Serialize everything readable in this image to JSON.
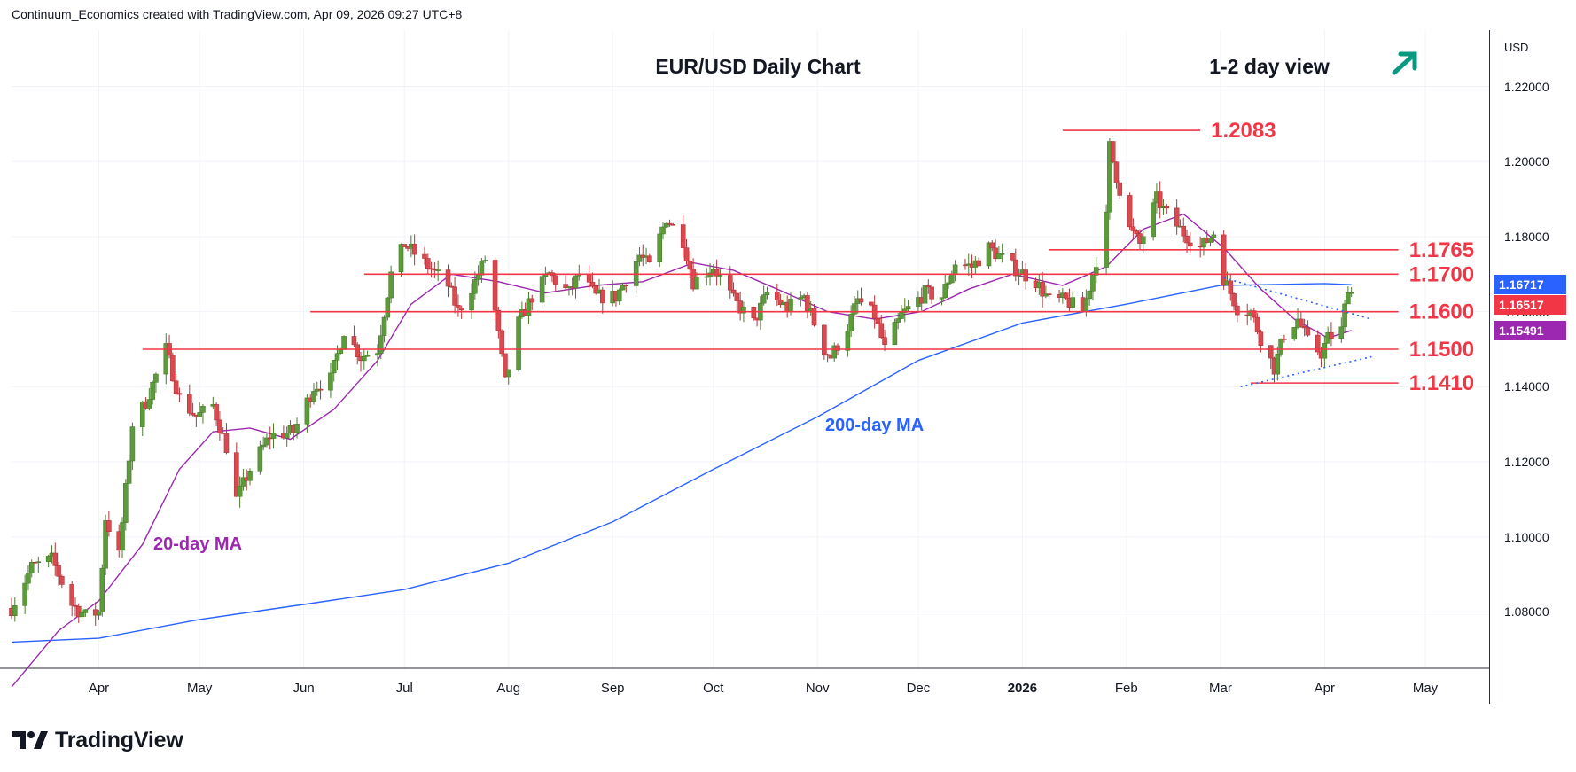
{
  "header": {
    "credit": "Continuum_Economics created with TradingView.com, Apr 09, 2026 09:27 UTC+8"
  },
  "axis": {
    "currency": "USD"
  },
  "branding": {
    "logo_text": "TradingView"
  },
  "colors": {
    "up": "#4a7c2c",
    "down": "#b0343a",
    "resistance": "#f23645",
    "ma20": "#9c27b0",
    "ma200": "#2962ff",
    "trend": "#2962ff",
    "arrow": "#089981",
    "last_price": "#f23645",
    "ma200_tag": "#2962ff",
    "ma20_tag": "#9c27b0"
  },
  "price_tags": [
    {
      "label": "1.16717",
      "value": 1.16717,
      "color": "#2962ff"
    },
    {
      "label": "1.16517",
      "value": 1.16517,
      "color": "#f23645"
    },
    {
      "label": "1.15491",
      "value": 1.15491,
      "color": "#9c27b0"
    }
  ],
  "chart_data": {
    "type": "candlestick",
    "title": "EUR/USD Daily Chart",
    "subtitle": "1-2 day view",
    "view_icon": "arrow-up-right-icon",
    "ylim": [
      1.065,
      1.235
    ],
    "y_ticks": [
      "1.08000",
      "1.10000",
      "1.12000",
      "1.14000",
      "1.16000",
      "1.18000",
      "1.20000",
      "1.22000"
    ],
    "x_ticks": [
      {
        "label": "Apr",
        "date": "2025-04-01"
      },
      {
        "label": "May",
        "date": "2025-05-01"
      },
      {
        "label": "Jun",
        "date": "2025-06-01"
      },
      {
        "label": "Jul",
        "date": "2025-07-01"
      },
      {
        "label": "Aug",
        "date": "2025-08-01"
      },
      {
        "label": "Sep",
        "date": "2025-09-01"
      },
      {
        "label": "Oct",
        "date": "2025-10-01"
      },
      {
        "label": "Nov",
        "date": "2025-11-01"
      },
      {
        "label": "Dec",
        "date": "2025-12-01"
      },
      {
        "label": "2026",
        "date": "2026-01-01",
        "bold": true
      },
      {
        "label": "Feb",
        "date": "2026-02-01"
      },
      {
        "label": "Mar",
        "date": "2026-03-01"
      },
      {
        "label": "Apr",
        "date": "2026-04-01"
      },
      {
        "label": "May",
        "date": "2026-05-01"
      }
    ],
    "xlim": [
      "2025-03-06",
      "2026-05-20"
    ],
    "price_path": [
      [
        "2025-03-06",
        1.081
      ],
      [
        "2025-03-12",
        1.092
      ],
      [
        "2025-03-18",
        1.094
      ],
      [
        "2025-03-24",
        1.082
      ],
      [
        "2025-03-28",
        1.079
      ],
      [
        "2025-04-01",
        1.08
      ],
      [
        "2025-04-03",
        1.105
      ],
      [
        "2025-04-07",
        1.095
      ],
      [
        "2025-04-11",
        1.13
      ],
      [
        "2025-04-15",
        1.136
      ],
      [
        "2025-04-21",
        1.15
      ],
      [
        "2025-04-25",
        1.137
      ],
      [
        "2025-04-30",
        1.132
      ],
      [
        "2025-05-05",
        1.135
      ],
      [
        "2025-05-09",
        1.124
      ],
      [
        "2025-05-12",
        1.11
      ],
      [
        "2025-05-16",
        1.118
      ],
      [
        "2025-05-22",
        1.127
      ],
      [
        "2025-05-29",
        1.128
      ],
      [
        "2025-06-04",
        1.14
      ],
      [
        "2025-06-09",
        1.142
      ],
      [
        "2025-06-13",
        1.155
      ],
      [
        "2025-06-18",
        1.148
      ],
      [
        "2025-06-23",
        1.15
      ],
      [
        "2025-06-27",
        1.17
      ],
      [
        "2025-07-01",
        1.178
      ],
      [
        "2025-07-07",
        1.173
      ],
      [
        "2025-07-14",
        1.167
      ],
      [
        "2025-07-17",
        1.16
      ],
      [
        "2025-07-22",
        1.168
      ],
      [
        "2025-07-25",
        1.174
      ],
      [
        "2025-07-28",
        1.16
      ],
      [
        "2025-07-31",
        1.141
      ],
      [
        "2025-08-04",
        1.157
      ],
      [
        "2025-08-08",
        1.164
      ],
      [
        "2025-08-13",
        1.17
      ],
      [
        "2025-08-19",
        1.165
      ],
      [
        "2025-08-22",
        1.17
      ],
      [
        "2025-08-27",
        1.164
      ],
      [
        "2025-09-02",
        1.164
      ],
      [
        "2025-09-09",
        1.175
      ],
      [
        "2025-09-12",
        1.172
      ],
      [
        "2025-09-17",
        1.185
      ],
      [
        "2025-09-22",
        1.179
      ],
      [
        "2025-09-25",
        1.168
      ],
      [
        "2025-10-01",
        1.172
      ],
      [
        "2025-10-07",
        1.163
      ],
      [
        "2025-10-13",
        1.157
      ],
      [
        "2025-10-17",
        1.165
      ],
      [
        "2025-10-23",
        1.161
      ],
      [
        "2025-10-28",
        1.164
      ],
      [
        "2025-11-03",
        1.15
      ],
      [
        "2025-11-05",
        1.148
      ],
      [
        "2025-11-10",
        1.156
      ],
      [
        "2025-11-13",
        1.163
      ],
      [
        "2025-11-18",
        1.159
      ],
      [
        "2025-11-21",
        1.15
      ],
      [
        "2025-11-26",
        1.159
      ],
      [
        "2025-12-03",
        1.165
      ],
      [
        "2025-12-08",
        1.164
      ],
      [
        "2025-12-12",
        1.173
      ],
      [
        "2025-12-17",
        1.172
      ],
      [
        "2025-12-22",
        1.177
      ],
      [
        "2025-12-29",
        1.172
      ],
      [
        "2026-01-05",
        1.168
      ],
      [
        "2026-01-09",
        1.163
      ],
      [
        "2026-01-14",
        1.163
      ],
      [
        "2026-01-19",
        1.16
      ],
      [
        "2026-01-22",
        1.17
      ],
      [
        "2026-01-26",
        1.185
      ],
      [
        "2026-01-27",
        1.204
      ],
      [
        "2026-01-29",
        1.196
      ],
      [
        "2026-02-02",
        1.182
      ],
      [
        "2026-02-05",
        1.178
      ],
      [
        "2026-02-10",
        1.19
      ],
      [
        "2026-02-13",
        1.186
      ],
      [
        "2026-02-18",
        1.181
      ],
      [
        "2026-02-23",
        1.177
      ],
      [
        "2026-02-27",
        1.181
      ],
      [
        "2026-03-02",
        1.169
      ],
      [
        "2026-03-06",
        1.161
      ],
      [
        "2026-03-10",
        1.16
      ],
      [
        "2026-03-13",
        1.153
      ],
      [
        "2026-03-17",
        1.145
      ],
      [
        "2026-03-20",
        1.154
      ],
      [
        "2026-03-24",
        1.158
      ],
      [
        "2026-03-27",
        1.152
      ],
      [
        "2026-03-31",
        1.149
      ],
      [
        "2026-04-02",
        1.153
      ],
      [
        "2026-04-06",
        1.155
      ],
      [
        "2026-04-08",
        1.167
      ],
      [
        "2026-04-09",
        1.165
      ]
    ],
    "ma20_path": [
      [
        "2025-03-06",
        1.06
      ],
      [
        "2025-03-20",
        1.075
      ],
      [
        "2025-04-01",
        1.083
      ],
      [
        "2025-04-14",
        1.098
      ],
      [
        "2025-04-25",
        1.118
      ],
      [
        "2025-05-05",
        1.128
      ],
      [
        "2025-05-16",
        1.129
      ],
      [
        "2025-05-28",
        1.126
      ],
      [
        "2025-06-10",
        1.134
      ],
      [
        "2025-06-23",
        1.147
      ],
      [
        "2025-07-03",
        1.162
      ],
      [
        "2025-07-15",
        1.17
      ],
      [
        "2025-07-29",
        1.168
      ],
      [
        "2025-08-12",
        1.165
      ],
      [
        "2025-08-27",
        1.167
      ],
      [
        "2025-09-10",
        1.168
      ],
      [
        "2025-09-25",
        1.173
      ],
      [
        "2025-10-07",
        1.171
      ],
      [
        "2025-10-20",
        1.166
      ],
      [
        "2025-11-04",
        1.16
      ],
      [
        "2025-11-18",
        1.158
      ],
      [
        "2025-12-02",
        1.16
      ],
      [
        "2025-12-16",
        1.166
      ],
      [
        "2025-12-29",
        1.17
      ],
      [
        "2026-01-13",
        1.167
      ],
      [
        "2026-01-26",
        1.172
      ],
      [
        "2026-02-06",
        1.182
      ],
      [
        "2026-02-18",
        1.186
      ],
      [
        "2026-03-02",
        1.177
      ],
      [
        "2026-03-13",
        1.166
      ],
      [
        "2026-03-23",
        1.158
      ],
      [
        "2026-04-02",
        1.153
      ],
      [
        "2026-04-09",
        1.155
      ]
    ],
    "ma200_path": [
      [
        "2025-03-06",
        1.072
      ],
      [
        "2025-04-01",
        1.073
      ],
      [
        "2025-05-01",
        1.078
      ],
      [
        "2025-06-01",
        1.082
      ],
      [
        "2025-07-01",
        1.086
      ],
      [
        "2025-08-01",
        1.093
      ],
      [
        "2025-09-01",
        1.104
      ],
      [
        "2025-10-01",
        1.118
      ],
      [
        "2025-11-01",
        1.132
      ],
      [
        "2025-12-01",
        1.147
      ],
      [
        "2026-01-01",
        1.157
      ],
      [
        "2026-02-01",
        1.162
      ],
      [
        "2026-03-01",
        1.167
      ],
      [
        "2026-04-01",
        1.1675
      ],
      [
        "2026-04-09",
        1.1672
      ]
    ],
    "levels": [
      {
        "label": "1.2083",
        "value": 1.2083,
        "from": "2026-01-13",
        "to": "2026-02-23"
      },
      {
        "label": "1.1765",
        "value": 1.1765,
        "from": "2026-01-09",
        "to": "2026-04-23"
      },
      {
        "label": "1.1700",
        "value": 1.17,
        "from": "2025-06-19",
        "to": "2026-04-23"
      },
      {
        "label": "1.1600",
        "value": 1.16,
        "from": "2025-06-03",
        "to": "2026-04-23"
      },
      {
        "label": "1.1500",
        "value": 1.15,
        "from": "2025-04-14",
        "to": "2026-04-23"
      },
      {
        "label": "1.1410",
        "value": 1.141,
        "from": "2026-03-10",
        "to": "2026-04-23"
      }
    ],
    "trendlines": [
      {
        "from": [
          "2026-03-02",
          1.169
        ],
        "to": [
          "2026-04-15",
          1.158
        ]
      },
      {
        "from": [
          "2026-03-07",
          1.14
        ],
        "to": [
          "2026-04-15",
          1.148
        ]
      }
    ],
    "annotations": [
      {
        "text": "20-day MA",
        "color": "#9c27b0"
      },
      {
        "text": "200-day MA",
        "color": "#2962ff"
      }
    ]
  }
}
